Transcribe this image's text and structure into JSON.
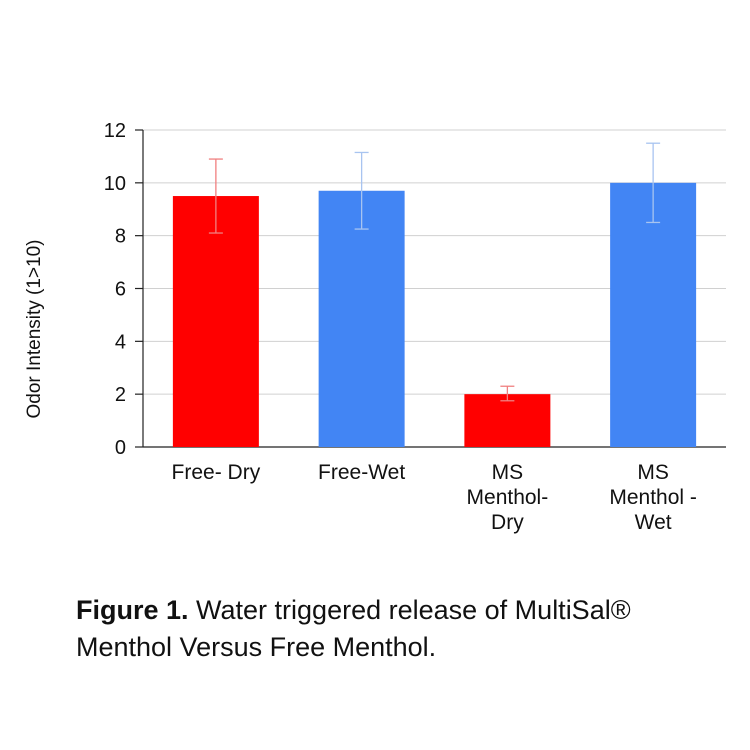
{
  "chart_data": {
    "type": "bar",
    "title": "",
    "xlabel": "",
    "ylabel": "Odor Intensity (1>10)",
    "ylim": [
      0,
      12
    ],
    "yticks": [
      0,
      2,
      4,
      6,
      8,
      10,
      12
    ],
    "grid": true,
    "legend": "none",
    "categories": [
      [
        "Free- Dry"
      ],
      [
        "Free-Wet"
      ],
      [
        "MS",
        "Menthol-",
        "Dry"
      ],
      [
        "MS",
        "Menthol -",
        "Wet"
      ]
    ],
    "values": [
      9.5,
      9.7,
      2.0,
      10.0
    ],
    "error_low": [
      8.1,
      8.25,
      1.75,
      8.5
    ],
    "error_high": [
      10.9,
      11.15,
      2.3,
      11.5
    ],
    "colors": [
      "#ff0000",
      "#4285f4",
      "#ff0000",
      "#4285f4"
    ],
    "error_colors": [
      "#f08080",
      "#a8c4f0",
      "#f08080",
      "#a8c4f0"
    ]
  },
  "caption": {
    "label": "Figure 1.",
    "text": " Water triggered release of MultiSal® Menthol Versus Free Menthol."
  }
}
